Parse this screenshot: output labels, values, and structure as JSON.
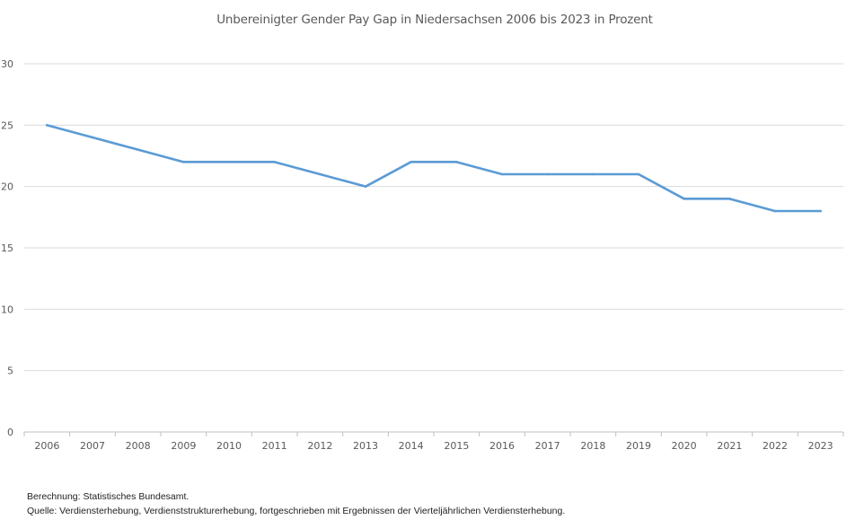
{
  "chart_data": {
    "type": "line",
    "title": "Unbereinigter Gender Pay Gap in Niedersachsen 2006 bis 2023 in Prozent",
    "categories": [
      "2006",
      "2007",
      "2008",
      "2009",
      "2010",
      "2011",
      "2012",
      "2013",
      "2014",
      "2015",
      "2016",
      "2017",
      "2018",
      "2019",
      "2020",
      "2021",
      "2022",
      "2023"
    ],
    "series": [
      {
        "values": [
          25,
          24,
          23,
          22,
          22,
          22,
          21,
          20,
          22,
          22,
          21,
          21,
          21,
          21,
          19,
          19,
          18,
          18
        ],
        "color": "#5b9bd5"
      }
    ],
    "ylim": [
      0,
      30
    ],
    "yticks": [
      0,
      5,
      10,
      15,
      20,
      25,
      30
    ],
    "grid": true,
    "xlabel": "",
    "ylabel": ""
  },
  "footnotes": {
    "berechnung": "Berechnung: Statistisches Bundesamt.",
    "quelle": "Quelle: Verdiensterhebung, Verdienststrukturerhebung, fortgeschrieben mit Ergebnissen der Vierteljährlichen Verdiensterhebung."
  }
}
